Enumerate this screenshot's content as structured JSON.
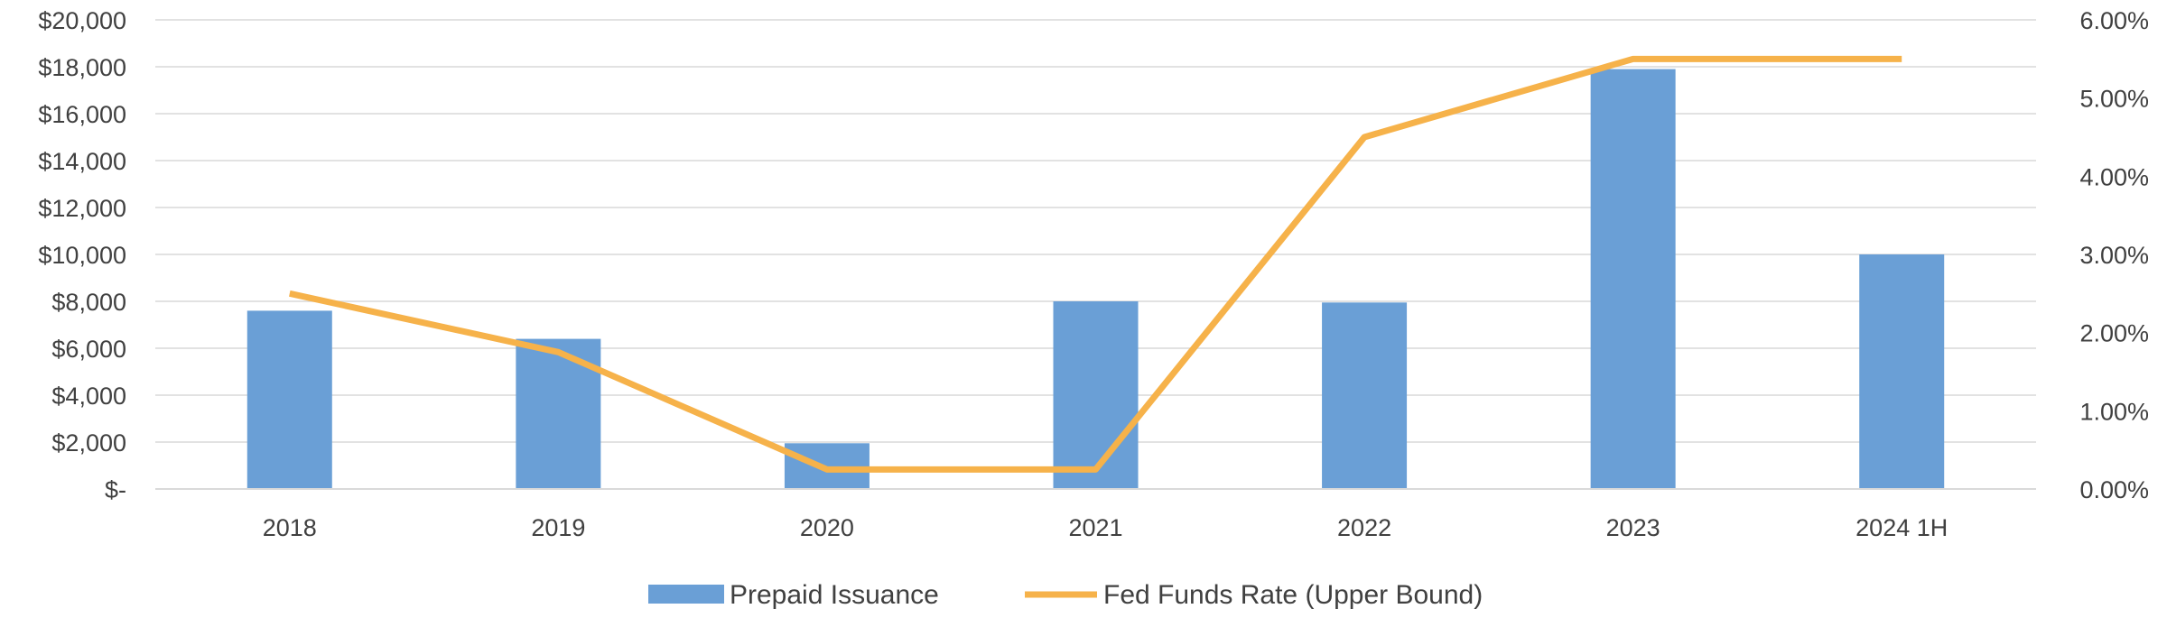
{
  "chart_data": {
    "type": "bar",
    "title": "",
    "categories": [
      "2018",
      "2019",
      "2020",
      "2021",
      "2022",
      "2023",
      "2024 1H"
    ],
    "series": [
      {
        "name": "Prepaid Issuance",
        "type": "bar",
        "axis": "left",
        "color": "#6A9FD6",
        "values": [
          7600,
          6400,
          1950,
          8000,
          7950,
          17900,
          10000
        ]
      },
      {
        "name": "Fed Funds Rate (Upper Bound)",
        "type": "line",
        "axis": "right",
        "color": "#F6B24A",
        "values": [
          2.5,
          1.75,
          0.25,
          0.25,
          4.5,
          5.5,
          5.5
        ]
      }
    ],
    "y_left": {
      "range": [
        0,
        20000
      ],
      "ticks": [
        0,
        2000,
        4000,
        6000,
        8000,
        10000,
        12000,
        14000,
        16000,
        18000,
        20000
      ],
      "tick_labels": [
        "$-",
        "$2,000",
        "$4,000",
        "$6,000",
        "$8,000",
        "$10,000",
        "$12,000",
        "$14,000",
        "$16,000",
        "$18,000",
        "$20,000"
      ]
    },
    "y_right": {
      "range": [
        0,
        6
      ],
      "ticks": [
        0,
        1,
        2,
        3,
        4,
        5,
        6
      ],
      "tick_labels": [
        "0.00%",
        "1.00%",
        "2.00%",
        "3.00%",
        "4.00%",
        "5.00%",
        "6.00%"
      ]
    },
    "grid": true,
    "gridline_color": "#D9D9D9",
    "legend_position": "bottom"
  }
}
